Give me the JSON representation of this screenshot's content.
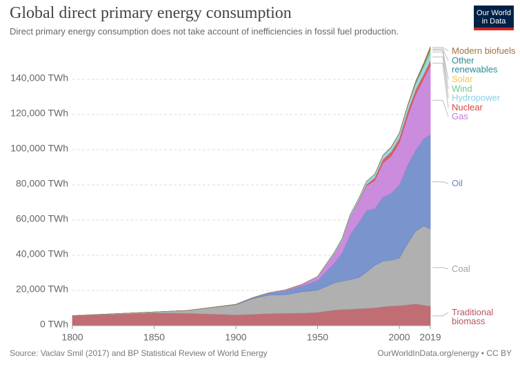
{
  "logo": "Our World in Data",
  "chart_data": {
    "type": "stacked-area",
    "title": "Global direct primary energy consumption",
    "subtitle": "Direct primary energy consumption does not take account of inefficiencies in fossil fuel production.",
    "source": "Source: Vaclav Smil (2017) and BP Statistical Review of World Energy",
    "url": "OurWorldInData.org/energy • CC BY",
    "x": [
      1800,
      1850,
      1870,
      1900,
      1910,
      1920,
      1930,
      1940,
      1950,
      1960,
      1965,
      1970,
      1975,
      1980,
      1985,
      1990,
      1995,
      2000,
      2005,
      2010,
      2015,
      2019
    ],
    "xlim": [
      1800,
      2019
    ],
    "xticks": [
      1800,
      1850,
      1900,
      1950,
      2000,
      2019
    ],
    "ylim": [
      0,
      160000
    ],
    "yticks": [
      {
        "value": 0,
        "label": "0 TWh"
      },
      {
        "value": 20000,
        "label": "20,000 TWh"
      },
      {
        "value": 40000,
        "label": "40,000 TWh"
      },
      {
        "value": 60000,
        "label": "60,000 TWh"
      },
      {
        "value": 80000,
        "label": "80,000 TWh"
      },
      {
        "value": 100000,
        "label": "100,000 TWh"
      },
      {
        "value": 120000,
        "label": "120,000 TWh"
      },
      {
        "value": 140000,
        "label": "140,000 TWh"
      }
    ],
    "grid": true,
    "series": [
      {
        "name": "Traditional biomass",
        "color": "#b5545c",
        "values": [
          5556,
          7222,
          7000,
          6111,
          6400,
          6800,
          7000,
          7100,
          7500,
          8800,
          9100,
          9300,
          9600,
          9800,
          10100,
          10700,
          11100,
          11300,
          11800,
          12300,
          11600,
          11100
        ]
      },
      {
        "name": "Coal",
        "color": "#a2a2a2",
        "values": [
          97,
          569,
          1600,
          5728,
          8800,
          10500,
          10500,
          12100,
          12600,
          15400,
          16200,
          16900,
          17600,
          20700,
          24100,
          25900,
          26100,
          27100,
          34800,
          41400,
          45100,
          43800
        ]
      },
      {
        "name": "Oil",
        "color": "#6383c4",
        "values": [
          0,
          0,
          0,
          181,
          450,
          1100,
          2200,
          3200,
          5400,
          11000,
          16000,
          25500,
          31000,
          34800,
          32300,
          36400,
          38000,
          41500,
          44400,
          46000,
          49600,
          53600
        ]
      },
      {
        "name": "Gas",
        "color": "#c278d8",
        "values": [
          0,
          0,
          0,
          64,
          170,
          230,
          550,
          900,
          2100,
          5400,
          7300,
          10200,
          11900,
          14300,
          16100,
          19500,
          21300,
          24100,
          27800,
          31700,
          34300,
          39300
        ]
      },
      {
        "name": "Nuclear",
        "color": "#d5473d",
        "values": [
          0,
          0,
          0,
          0,
          0,
          0,
          0,
          0,
          0,
          0,
          25,
          80,
          380,
          710,
          1490,
          2000,
          2300,
          2500,
          2700,
          2700,
          2500,
          2800
        ]
      },
      {
        "name": "Hydropower",
        "color": "#8ad0e2",
        "values": [
          0,
          0,
          0,
          0,
          0,
          0,
          0,
          0,
          330,
          690,
          920,
          1180,
          1420,
          1720,
          1960,
          2150,
          2480,
          2650,
          2910,
          3430,
          3870,
          4220
        ]
      },
      {
        "name": "Wind",
        "color": "#6ac98a",
        "values": [
          0,
          0,
          0,
          0,
          0,
          0,
          0,
          0,
          0,
          0,
          0,
          0,
          0,
          0,
          0,
          4,
          8,
          31,
          104,
          342,
          833,
          1430
        ]
      },
      {
        "name": "Solar",
        "color": "#f0c64c",
        "values": [
          0,
          0,
          0,
          0,
          0,
          0,
          0,
          0,
          0,
          0,
          0,
          0,
          0,
          0,
          0,
          0,
          0,
          0,
          4,
          32,
          256,
          724
        ]
      },
      {
        "name": "Other renewables",
        "color": "#2a8a8f",
        "values": [
          0,
          0,
          0,
          0,
          0,
          0,
          0,
          0,
          0,
          0,
          8,
          15,
          20,
          35,
          80,
          130,
          170,
          210,
          270,
          380,
          500,
          590
        ]
      },
      {
        "name": "Modern biofuels",
        "color": "#a0703e",
        "values": [
          0,
          0,
          0,
          0,
          0,
          0,
          0,
          0,
          0,
          0,
          0,
          0,
          0,
          0,
          0,
          80,
          90,
          110,
          210,
          580,
          840,
          1100
        ]
      }
    ]
  }
}
